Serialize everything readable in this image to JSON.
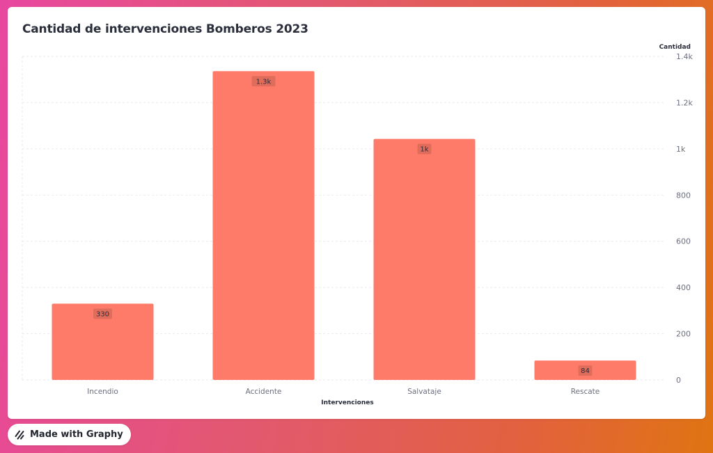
{
  "chart_data": {
    "type": "bar",
    "title": "Cantidad de intervenciones Bomberos 2023",
    "xlabel": "Intervenciones",
    "ylabel": "Cantidad",
    "categories": [
      "Incendio",
      "Accidente",
      "Salvataje",
      "Rescate"
    ],
    "values": [
      330,
      1336,
      1043,
      84
    ],
    "data_labels": [
      "330",
      "1.3k",
      "1k",
      "84"
    ],
    "ylim": [
      0,
      1400
    ],
    "yticks": [
      0,
      200,
      400,
      600,
      800,
      1000,
      1200,
      1400
    ],
    "ytick_labels": [
      "0",
      "200",
      "400",
      "600",
      "800",
      "1k",
      "1.2k",
      "1.4k"
    ],
    "y_axis_position": "right",
    "grid": true,
    "bar_color": "#ff7b69"
  },
  "badge": {
    "label": "Made with Graphy",
    "icon": "graphy-logo-icon"
  }
}
